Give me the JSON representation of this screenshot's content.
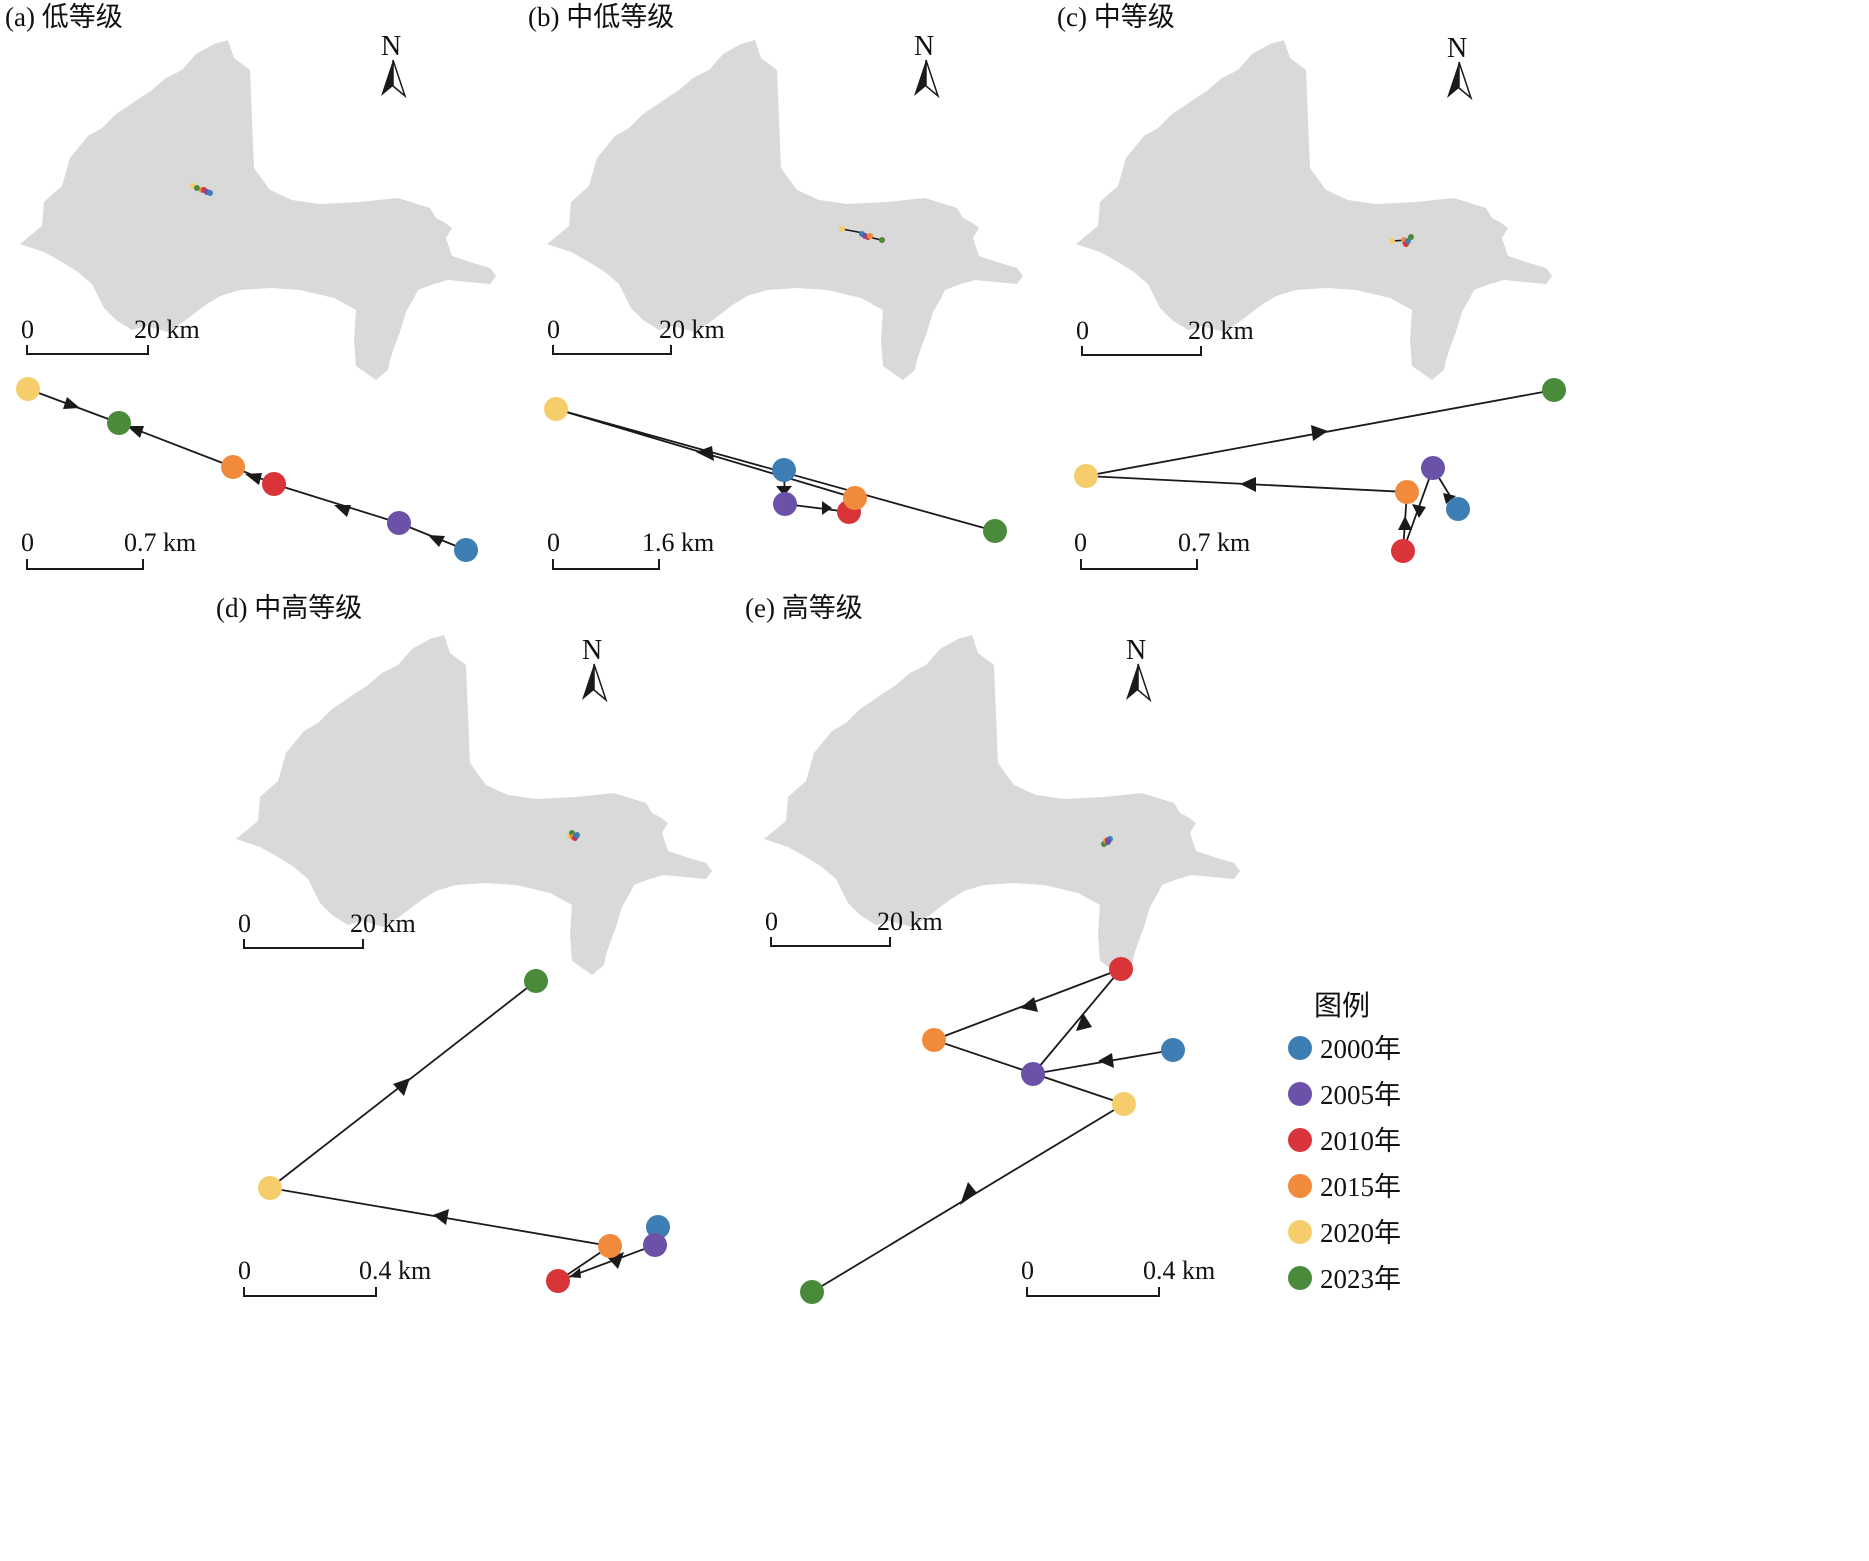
{
  "colors": {
    "region_fill": "#d9d9d9",
    "line": "#1a1a1a",
    "years": {
      "2000": "#3d7fb5",
      "2005": "#6b51a8",
      "2010": "#d8343a",
      "2015": "#f28a3b",
      "2020": "#f5cd6b",
      "2023": "#4a8b3b"
    }
  },
  "north_label": "N",
  "scale_zero": "0",
  "legend": {
    "title": "图例",
    "items": [
      {
        "year": "2000",
        "label": "2000年"
      },
      {
        "year": "2005",
        "label": "2005年"
      },
      {
        "year": "2010",
        "label": "2010年"
      },
      {
        "year": "2015",
        "label": "2015年"
      },
      {
        "year": "2020",
        "label": "2020年"
      },
      {
        "year": "2023",
        "label": "2023年"
      }
    ]
  },
  "panels": [
    {
      "id": "a",
      "title": "(a) 低等级",
      "overview_scale": "20 km",
      "detail_scale": "0.7 km"
    },
    {
      "id": "b",
      "title": "(b) 中低等级",
      "overview_scale": "20 km",
      "detail_scale": "1.6 km"
    },
    {
      "id": "c",
      "title": "(c) 中等级",
      "overview_scale": "20 km",
      "detail_scale": "0.7 km"
    },
    {
      "id": "d",
      "title": "(d) 中高等级",
      "overview_scale": "20 km",
      "detail_scale": "0.4 km"
    },
    {
      "id": "e",
      "title": "(e) 高等级",
      "overview_scale": "20 km",
      "detail_scale": "0.4 km"
    }
  ]
}
